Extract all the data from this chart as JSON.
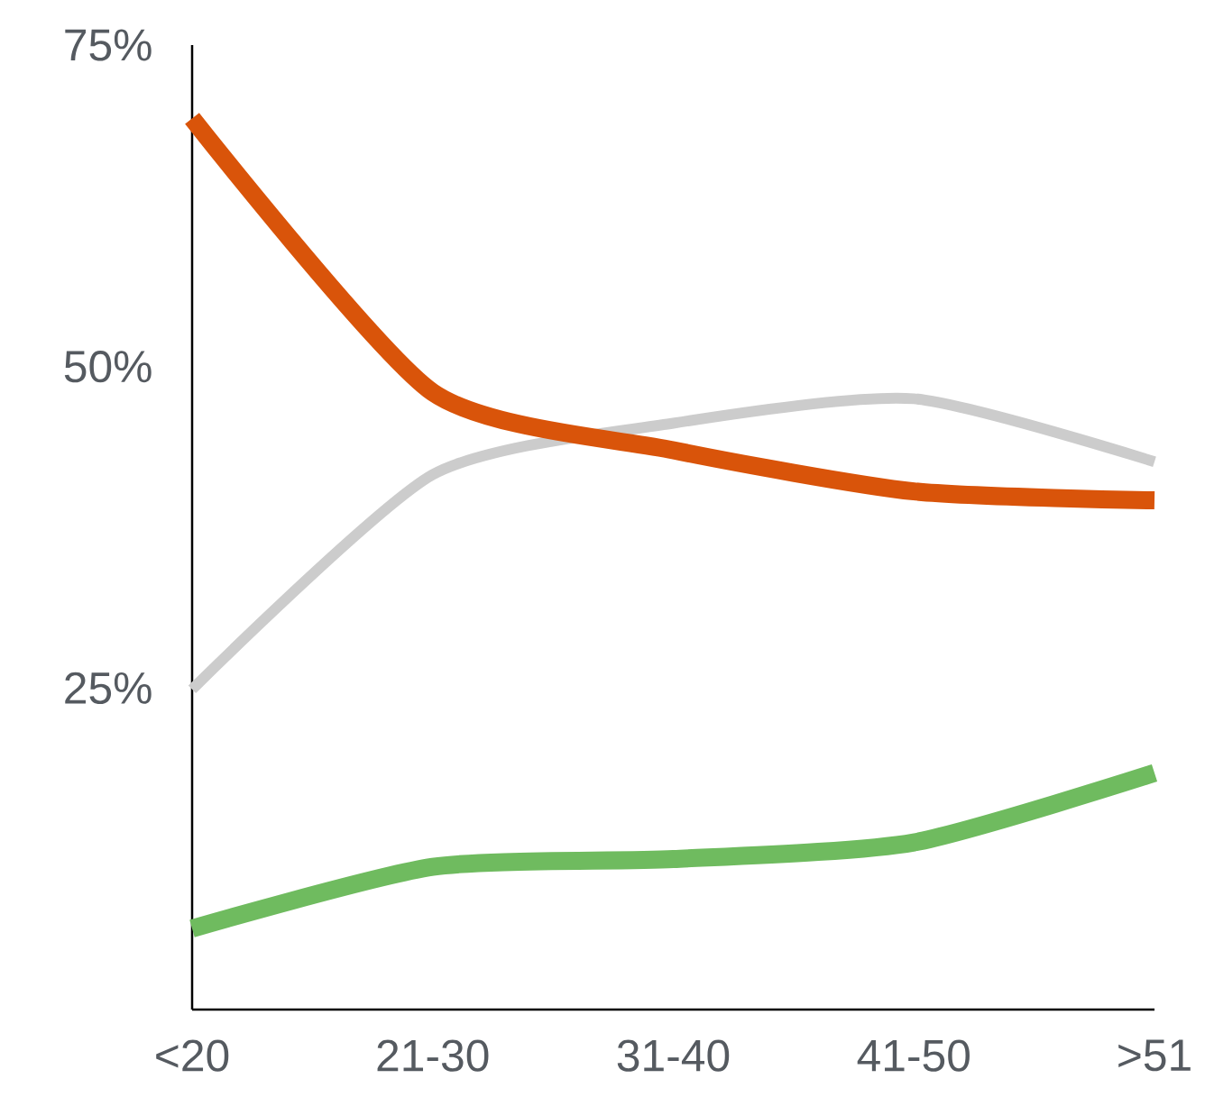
{
  "chart_data": {
    "type": "line",
    "categories": [
      "<20",
      "21-30",
      "31-40",
      "41-50",
      ">51"
    ],
    "ylim": [
      0,
      75
    ],
    "yticks": [
      {
        "value": 25,
        "label": "25%"
      },
      {
        "value": 50,
        "label": "50%"
      },
      {
        "value": 75,
        "label": "75%"
      }
    ],
    "series": [
      {
        "color": "#cccccc",
        "values": [
          24.9,
          41.6,
          45.6,
          47.5,
          42.6
        ]
      },
      {
        "color": "#d9540a",
        "values": [
          69.3,
          48.0,
          43.5,
          40.3,
          39.6
        ]
      },
      {
        "color": "#6fbb5f",
        "values": [
          6.3,
          11.1,
          11.7,
          13.0,
          18.4
        ]
      }
    ]
  }
}
